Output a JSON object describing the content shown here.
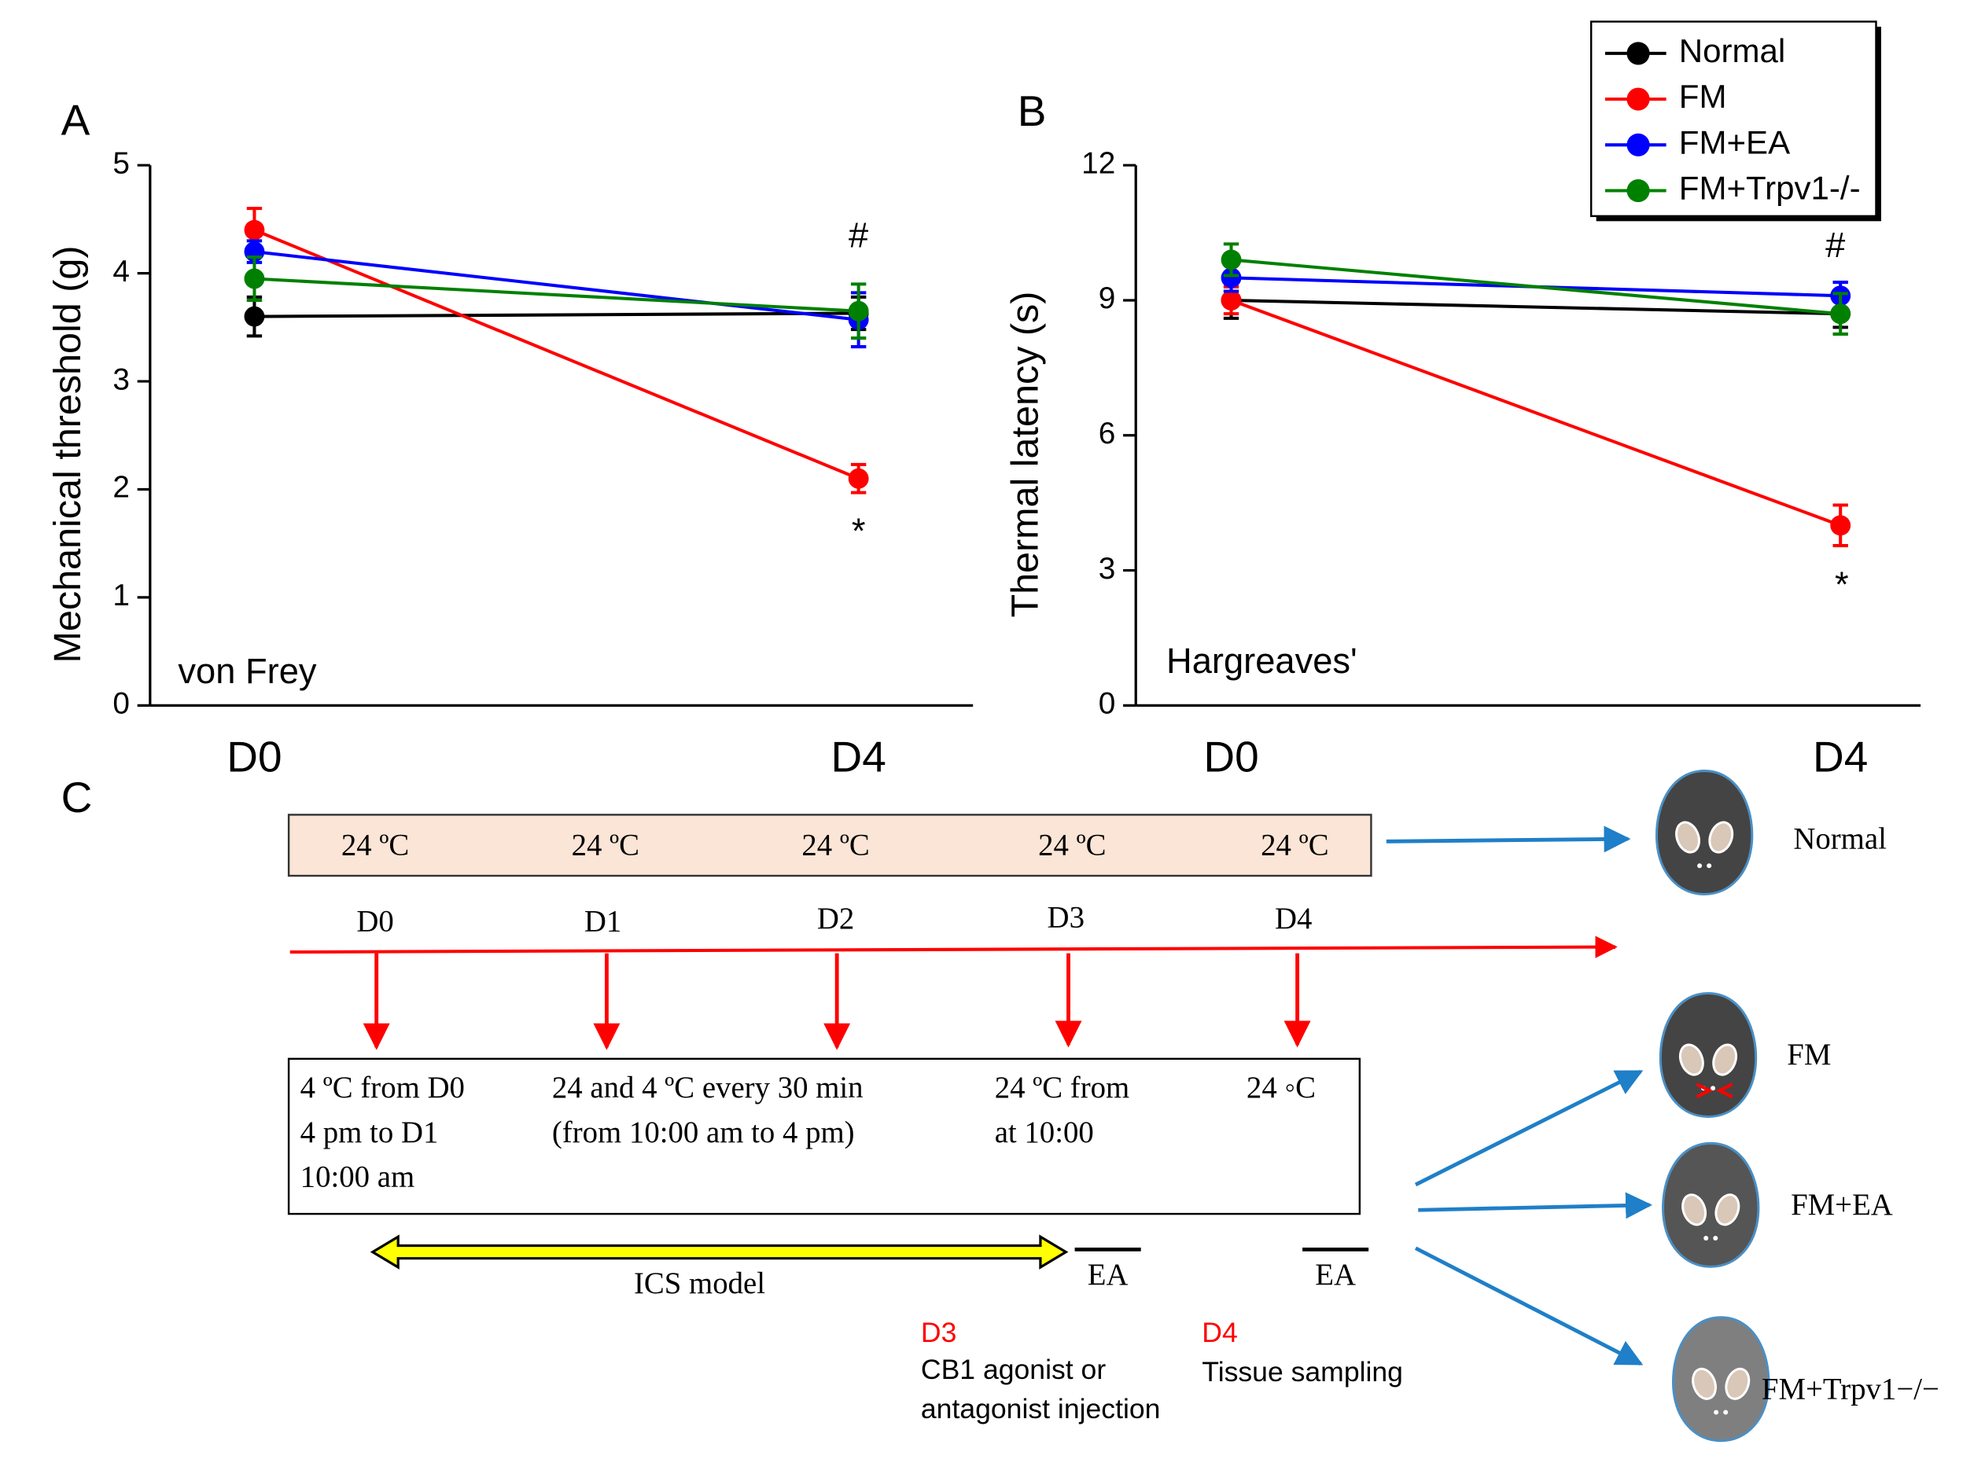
{
  "chart_data": [
    {
      "type": "line",
      "panel": "A",
      "ylabel": "Mechanical threshold (g)",
      "categories": [
        "D0",
        "D4"
      ],
      "ylim": [
        0,
        5
      ],
      "yticks": [
        0,
        1,
        2,
        3,
        4,
        5
      ],
      "annotations": [
        "#",
        "*",
        "von Frey"
      ],
      "series": [
        {
          "color": "#000000",
          "values": [
            3.6,
            3.63
          ],
          "errors": [
            0.18,
            0.15
          ]
        },
        {
          "color": "#ff0000",
          "values": [
            4.4,
            2.1
          ],
          "errors": [
            0.2,
            0.13
          ]
        },
        {
          "color": "#0000ff",
          "values": [
            4.2,
            3.57
          ],
          "errors": [
            0.1,
            0.25
          ]
        },
        {
          "color": "#008000",
          "values": [
            3.95,
            3.65
          ],
          "errors": [
            0.2,
            0.25
          ]
        }
      ]
    },
    {
      "type": "line",
      "panel": "B",
      "ylabel": "Thermal latency (s)",
      "categories": [
        "D0",
        "D4"
      ],
      "ylim": [
        0,
        12
      ],
      "yticks": [
        0,
        3,
        6,
        9,
        12
      ],
      "annotations": [
        "#",
        "*",
        "Hargreaves'"
      ],
      "legend": "top-right",
      "series": [
        {
          "name": "Normal",
          "color": "#000000",
          "values": [
            9.0,
            8.7
          ],
          "errors": [
            0.4,
            0.3
          ]
        },
        {
          "name": "FM",
          "color": "#ff0000",
          "values": [
            9.0,
            4.0
          ],
          "errors": [
            0.3,
            0.45
          ]
        },
        {
          "name": "FM+EA",
          "color": "#0000ff",
          "values": [
            9.5,
            9.1
          ],
          "errors": [
            0.3,
            0.3
          ]
        },
        {
          "name": "FM+Trpv1-/-",
          "color": "#008000",
          "values": [
            9.9,
            8.7
          ],
          "errors": [
            0.35,
            0.45
          ]
        }
      ]
    }
  ],
  "panel_c": {
    "label": "C",
    "temperatures": [
      "24 ºC",
      "24 ºC",
      "24 ºC",
      "24 ºC",
      "24 ºC"
    ],
    "days": [
      "D0",
      "D1",
      "D2",
      "D3",
      "D4"
    ],
    "conditions": [
      [
        "4 ºC from D0",
        "4 pm to D1",
        "10:00 am"
      ],
      [
        "24 and 4 ºC every 30 min",
        "(from 10:00 am to 4 pm)"
      ],
      [
        "24 ºC from",
        "at 10:00"
      ],
      [
        "24 ◦C"
      ]
    ],
    "model": "ICS model",
    "ea": [
      "EA",
      "EA"
    ],
    "notes": [
      {
        "day": "D3",
        "lines": [
          "CB1 agonist or",
          "antagonist injection"
        ]
      },
      {
        "day": "D4",
        "lines": [
          "Tissue sampling"
        ]
      }
    ],
    "groups": [
      "Normal",
      "FM",
      "FM+EA",
      "FM+Trpv1−/−"
    ]
  }
}
